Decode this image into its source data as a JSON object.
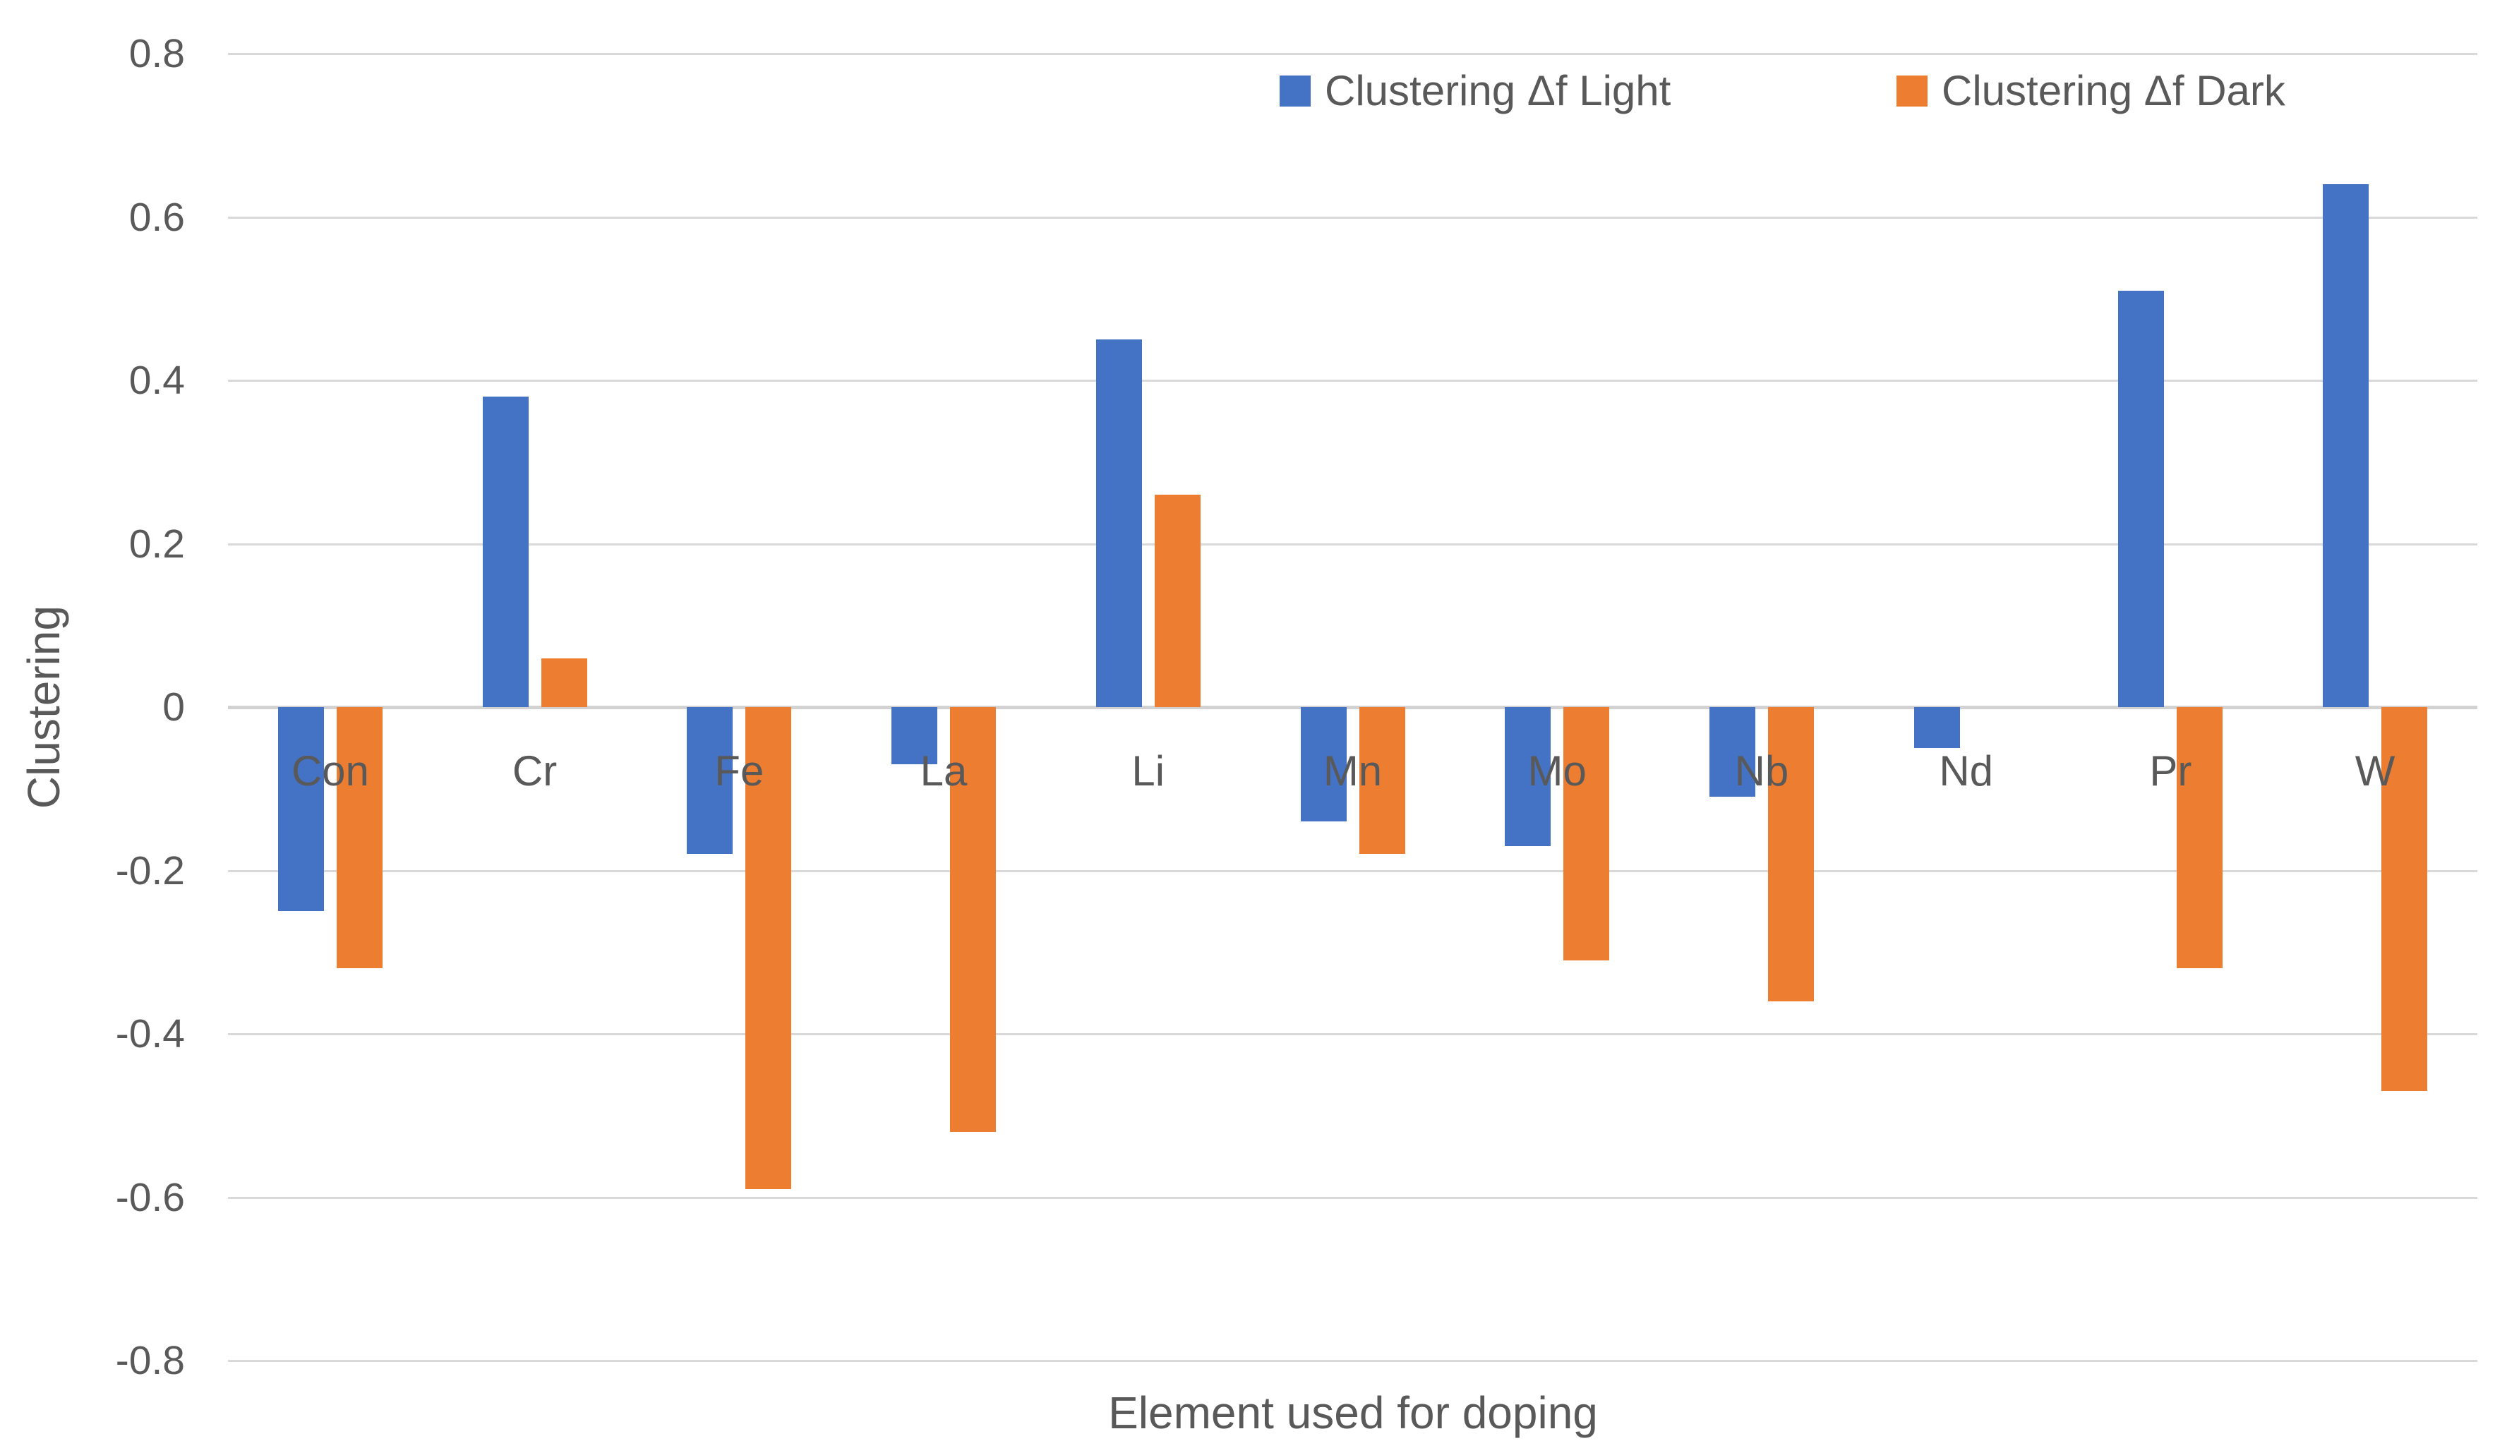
{
  "chart_data": {
    "type": "bar",
    "title": "",
    "xlabel": "Element used for doping",
    "ylabel": "Clustering",
    "categories": [
      "Con",
      "Cr",
      "Fe",
      "La",
      "Li",
      "Mn",
      "Mo",
      "Nb",
      "Nd",
      "Pr",
      "W"
    ],
    "series": [
      {
        "name": "Clustering Δf Light",
        "color": "#4472C4",
        "values": [
          -0.25,
          0.38,
          -0.18,
          -0.07,
          0.45,
          -0.14,
          -0.17,
          -0.11,
          -0.05,
          0.51,
          0.64
        ]
      },
      {
        "name": "Clustering Δf Dark",
        "color": "#ED7D31",
        "values": [
          -0.32,
          0.06,
          -0.59,
          -0.52,
          0.26,
          -0.18,
          -0.31,
          -0.36,
          null,
          -0.32,
          -0.47
        ]
      }
    ],
    "ylim": [
      -0.8,
      0.8
    ],
    "ytick_step": 0.2,
    "yticks": [
      "0.8",
      "0.6",
      "0.4",
      "0.2",
      "0",
      "-0.2",
      "-0.4",
      "-0.6",
      "-0.8"
    ],
    "grid": true,
    "legend_position": "top"
  },
  "colors": {
    "series_light": "#4472C4",
    "series_dark": "#ED7D31",
    "gridline": "#D9D9D9",
    "zero_axis": "#D2D2D2",
    "text": "#595959",
    "background": "#FFFFFF"
  }
}
